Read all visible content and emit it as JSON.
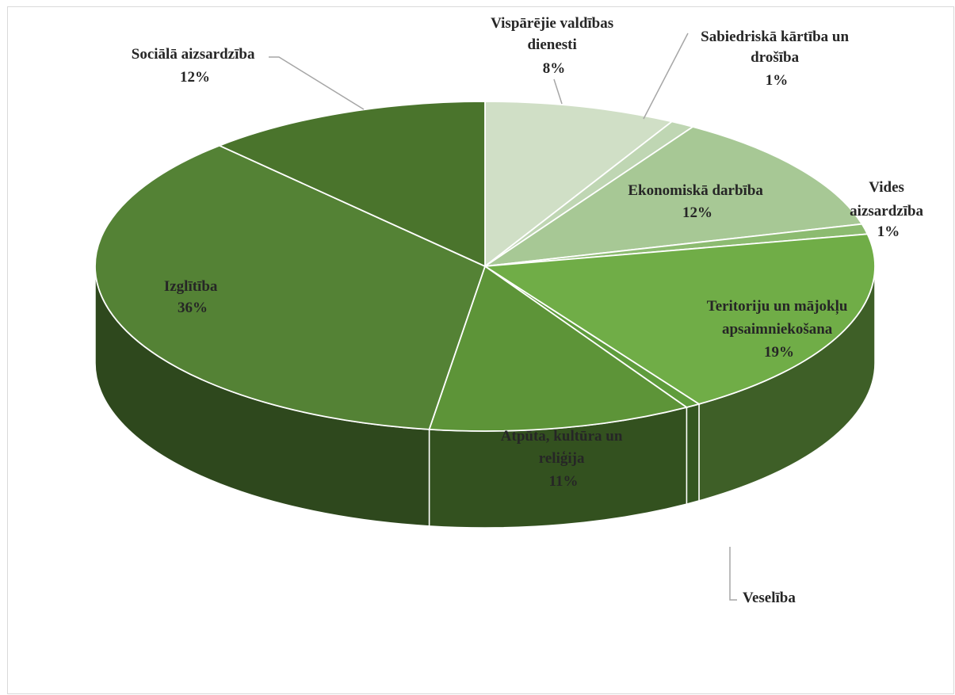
{
  "chart_data": {
    "type": "pie",
    "style": "3d",
    "title": "",
    "slices": [
      {
        "label": "Vispārējie valdības dienesti",
        "value": 8,
        "display": "8%",
        "color": "#d0dfc6"
      },
      {
        "label": "Sabiedriskā kārtība un drošība",
        "value": 1,
        "display": "1%",
        "color": "#bfd6b3"
      },
      {
        "label": "Ekonomiskā darbība",
        "value": 12,
        "display": "12%",
        "color": "#a7c895"
      },
      {
        "label": "Vides aizsardzība",
        "value": 1,
        "display": "1%",
        "color": "#8cbb70"
      },
      {
        "label": "Teritoriju un mājokļu apsaimniekošana",
        "value": 19,
        "display": "19%",
        "color": "#70ad47"
      },
      {
        "label": "Veselība",
        "value": 0.6,
        "display": "",
        "color": "#5f9c3c"
      },
      {
        "label": "Atpūta, kultūra un reliģija",
        "value": 11,
        "display": "11%",
        "color": "#5d9438"
      },
      {
        "label": "Izglītība",
        "value": 36,
        "display": "36%",
        "color": "#548235"
      },
      {
        "label": "Sociālā aizsardzība",
        "value": 12,
        "display": "12%",
        "color": "#4a742c"
      }
    ],
    "legend": "none",
    "data_labels": "outside-with-leader-lines"
  }
}
